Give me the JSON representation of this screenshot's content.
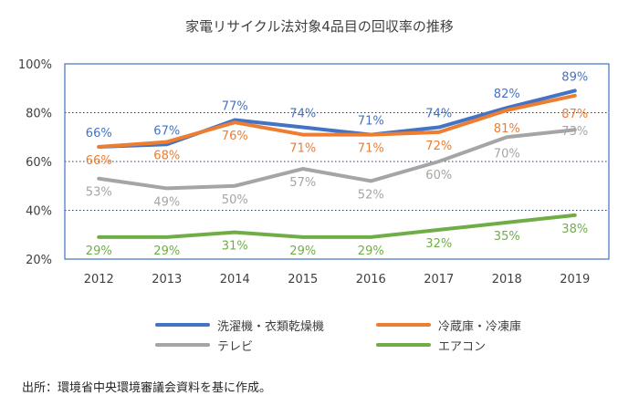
{
  "chart_data": {
    "type": "line",
    "title": "家電リサイクル法対象4品目の回収率の推移",
    "categories": [
      "2012",
      "2013",
      "2014",
      "2015",
      "2016",
      "2017",
      "2018",
      "2019"
    ],
    "ylim": [
      20,
      100
    ],
    "yticks": [
      "20%",
      "40%",
      "60%",
      "80%",
      "100%"
    ],
    "grid": "dotted horizontal at 40%, 60%, 80%",
    "legend_position": "bottom",
    "series": [
      {
        "name": "洗濯機・衣類乾燥機",
        "color": "#4472C4",
        "values": [
          66,
          67,
          77,
          74,
          71,
          74,
          82,
          89
        ],
        "labels": [
          "66%",
          "67%",
          "77%",
          "74%",
          "71%",
          "74%",
          "82%",
          "89%"
        ]
      },
      {
        "name": "冷蔵庫・冷凍庫",
        "color": "#ED7D31",
        "values": [
          66,
          68,
          76,
          71,
          71,
          72,
          81,
          87
        ],
        "labels": [
          "66%",
          "68%",
          "76%",
          "71%",
          "71%",
          "72%",
          "81%",
          "87%"
        ]
      },
      {
        "name": "テレビ",
        "color": "#A5A5A5",
        "values": [
          53,
          49,
          50,
          57,
          52,
          60,
          70,
          73
        ],
        "labels": [
          "53%",
          "49%",
          "50%",
          "57%",
          "52%",
          "60%",
          "70%",
          "73%"
        ]
      },
      {
        "name": "エアコン",
        "color": "#70AD47",
        "values": [
          29,
          29,
          31,
          29,
          29,
          32,
          35,
          38
        ],
        "labels": [
          "29%",
          "29%",
          "31%",
          "29%",
          "29%",
          "32%",
          "35%",
          "38%"
        ]
      }
    ]
  },
  "source_note": "出所：環境省中央環境審議会資料を基に作成。",
  "colors": {
    "plot_border": "#4472C4",
    "grid": "#1F3F7F",
    "text": "#404040"
  }
}
